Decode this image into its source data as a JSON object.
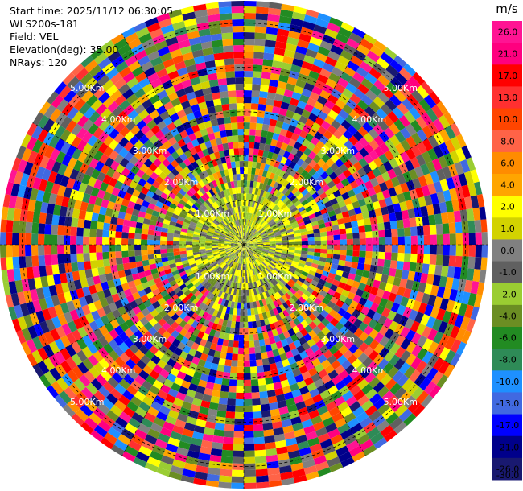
{
  "header": {
    "start_time": "Start time: 2025/11/12 06:30:05",
    "station": "WLS200s-181",
    "field": "Field: VEL",
    "elevation": "Elevation(deg): 35.00",
    "nrays": "NRays: 120"
  },
  "chart_data": {
    "type": "ppi",
    "field": "VEL",
    "elevation_deg": 35.0,
    "n_rays": 120,
    "range_rings_km": [
      1.0,
      2.0,
      3.0,
      4.0,
      5.0
    ],
    "range_ring_labels": [
      "1.00Km",
      "2.00Km",
      "3.00Km",
      "4.00Km",
      "5.00Km"
    ],
    "max_range_km": 5.5,
    "colorbar": {
      "unit": "m/s",
      "tick_labels": [
        "26.0",
        "21.0",
        "17.0",
        "13.0",
        "10.0",
        "8.0",
        "6.0",
        "4.0",
        "2.0",
        "1.0",
        "0.0",
        "-1.0",
        "-2.0",
        "-4.0",
        "-6.0",
        "-8.0",
        "-10.0",
        "-13.0",
        "-17.0",
        "-21.0",
        "-26.0",
        "-30.0"
      ],
      "colors": [
        "#ff1493",
        "#ff007f",
        "#ff0000",
        "#ff3030",
        "#ff4500",
        "#ff6347",
        "#ff8c00",
        "#ffa500",
        "#ffff00",
        "#d2d200",
        "#808080",
        "#606060",
        "#9acd32",
        "#6b8e23",
        "#228b22",
        "#2e8b57",
        "#1e90ff",
        "#4169e1",
        "#0000ff",
        "#00008b",
        "#191970"
      ]
    }
  }
}
